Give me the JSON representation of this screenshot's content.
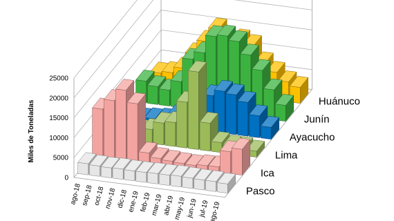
{
  "chart_data": {
    "type": "bar",
    "subtype": "3d-bar",
    "ylabel": "Miles de Toneladas",
    "ylim": [
      0,
      25000
    ],
    "yticks": [
      0,
      5000,
      10000,
      15000,
      20000,
      25000
    ],
    "grid": true,
    "categories": [
      "ago-18",
      "sep-18",
      "oct-18",
      "nov-18",
      "dic-18",
      "ene-19",
      "feb-19",
      "mar-19",
      "abr-19",
      "may-19",
      "jun-19",
      "jul-19",
      "ago-19"
    ],
    "series": [
      {
        "name": "Pasco",
        "color": "#e6e6e6",
        "values": [
          2800,
          2600,
          2500,
          2600,
          2500,
          2500,
          2600,
          2600,
          2700,
          2600,
          2500,
          2500,
          2300
        ]
      },
      {
        "name": "Ica",
        "color": "#f4a4a0",
        "values": [
          12000,
          14500,
          17500,
          14500,
          2500,
          1500,
          1200,
          1000,
          900,
          1200,
          1300,
          5500,
          6500
        ]
      },
      {
        "name": "Lima",
        "color": "#9bbb59",
        "values": [
          2500,
          3000,
          3000,
          3500,
          5500,
          6000,
          11500,
          19500,
          7000,
          2500,
          2000,
          2000,
          1500
        ]
      },
      {
        "name": "Ayacucho",
        "color": "#0070c0",
        "values": [
          1200,
          1000,
          1300,
          1600,
          3000,
          5000,
          7000,
          9000,
          10500,
          10000,
          8500,
          5500,
          3000
        ]
      },
      {
        "name": "Junín",
        "color": "#3cb340",
        "values": [
          5500,
          4500,
          4000,
          6500,
          12500,
          14500,
          19000,
          19500,
          18500,
          15500,
          12000,
          7500,
          4000
        ]
      },
      {
        "name": "Huánuco",
        "color": "#ffc000",
        "values": [
          3000,
          3500,
          5000,
          9000,
          12500,
          16000,
          13000,
          14000,
          13000,
          9000,
          7000,
          5000,
          4000
        ]
      }
    ]
  }
}
